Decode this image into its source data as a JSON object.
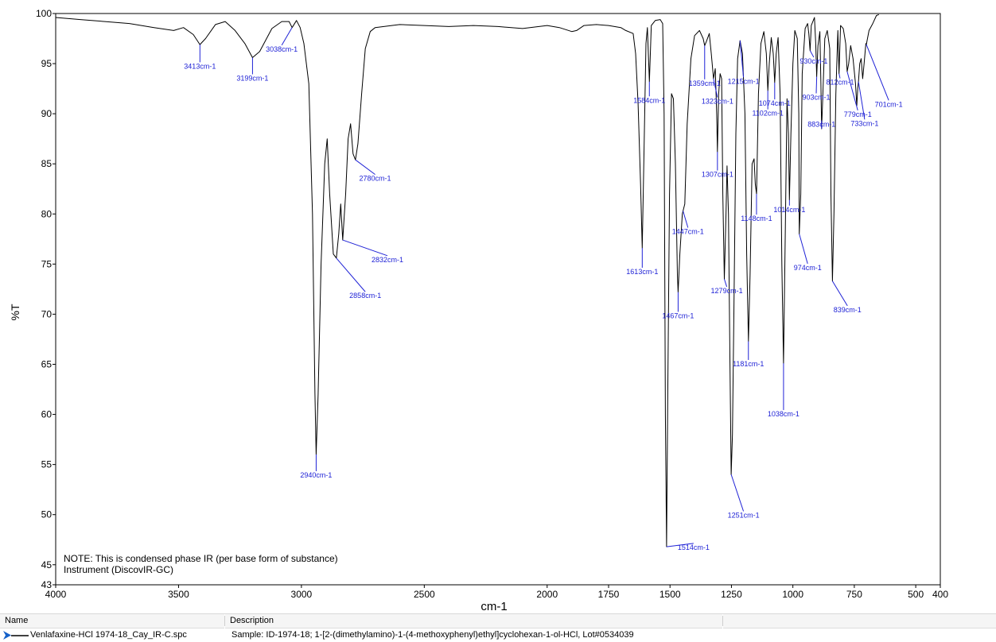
{
  "chart_data": {
    "type": "line",
    "title": "",
    "xlabel": "cm-1",
    "ylabel": "%T",
    "xlim": [
      4000,
      400
    ],
    "ylim": [
      43,
      100
    ],
    "x_ticks": [
      4000,
      3500,
      3000,
      2500,
      2000,
      1750,
      1500,
      1250,
      1000,
      750,
      500,
      400
    ],
    "y_ticks": [
      43,
      45,
      50,
      55,
      60,
      65,
      70,
      75,
      80,
      85,
      90,
      95,
      100
    ],
    "x_tick_labels": [
      "4000",
      "3500",
      "3000",
      "2500",
      "2000",
      "1750",
      "1500",
      "1250",
      "1000",
      "750",
      "500",
      "400"
    ],
    "y_tick_labels": [
      "43",
      "45",
      "50",
      "55",
      "60",
      "65",
      "70",
      "75",
      "80",
      "85",
      "90",
      "95",
      "100"
    ],
    "series": [
      {
        "name": "Venlafaxine-HCl 1974-18_Cay_IR-C.spc",
        "color": "#000000",
        "points": [
          [
            4000,
            99.6
          ],
          [
            3900,
            99.4
          ],
          [
            3800,
            99.2
          ],
          [
            3700,
            99.0
          ],
          [
            3600,
            98.6
          ],
          [
            3520,
            98.3
          ],
          [
            3480,
            98.6
          ],
          [
            3440,
            97.9
          ],
          [
            3413,
            96.9
          ],
          [
            3390,
            97.5
          ],
          [
            3350,
            98.9
          ],
          [
            3310,
            99.2
          ],
          [
            3270,
            98.3
          ],
          [
            3230,
            97.0
          ],
          [
            3199,
            95.6
          ],
          [
            3170,
            96.2
          ],
          [
            3120,
            98.5
          ],
          [
            3080,
            99.2
          ],
          [
            3050,
            99.2
          ],
          [
            3038,
            98.6
          ],
          [
            3020,
            99.3
          ],
          [
            3005,
            98.6
          ],
          [
            2990,
            97.0
          ],
          [
            2970,
            93.0
          ],
          [
            2955,
            80.0
          ],
          [
            2945,
            62.0
          ],
          [
            2940,
            56.0
          ],
          [
            2932,
            62.0
          ],
          [
            2920,
            75.0
          ],
          [
            2905,
            85.0
          ],
          [
            2895,
            87.5
          ],
          [
            2885,
            82.0
          ],
          [
            2870,
            76.0
          ],
          [
            2858,
            75.6
          ],
          [
            2848,
            78.0
          ],
          [
            2840,
            81.0
          ],
          [
            2832,
            77.4
          ],
          [
            2820,
            82.0
          ],
          [
            2810,
            87.5
          ],
          [
            2800,
            89.0
          ],
          [
            2790,
            86.0
          ],
          [
            2780,
            85.4
          ],
          [
            2770,
            87.0
          ],
          [
            2755,
            92.0
          ],
          [
            2740,
            96.5
          ],
          [
            2720,
            98.2
          ],
          [
            2700,
            98.6
          ],
          [
            2600,
            98.9
          ],
          [
            2500,
            98.8
          ],
          [
            2400,
            98.7
          ],
          [
            2300,
            98.8
          ],
          [
            2200,
            98.7
          ],
          [
            2100,
            98.5
          ],
          [
            2000,
            98.8
          ],
          [
            1950,
            98.6
          ],
          [
            1900,
            98.2
          ],
          [
            1880,
            98.3
          ],
          [
            1850,
            98.8
          ],
          [
            1800,
            98.9
          ],
          [
            1750,
            98.8
          ],
          [
            1700,
            98.6
          ],
          [
            1680,
            98.3
          ],
          [
            1650,
            98.0
          ],
          [
            1640,
            96.0
          ],
          [
            1630,
            91.0
          ],
          [
            1620,
            83.0
          ],
          [
            1613,
            76.6
          ],
          [
            1606,
            86.0
          ],
          [
            1598,
            97.0
          ],
          [
            1592,
            98.6
          ],
          [
            1584,
            93.2
          ],
          [
            1576,
            98.8
          ],
          [
            1560,
            99.3
          ],
          [
            1540,
            99.4
          ],
          [
            1530,
            99.0
          ],
          [
            1524,
            90.0
          ],
          [
            1519,
            60.0
          ],
          [
            1514,
            46.8
          ],
          [
            1509,
            62.0
          ],
          [
            1502,
            82.0
          ],
          [
            1494,
            92.0
          ],
          [
            1486,
            91.5
          ],
          [
            1478,
            85.0
          ],
          [
            1470,
            74.0
          ],
          [
            1467,
            72.2
          ],
          [
            1460,
            76.0
          ],
          [
            1450,
            80.0
          ],
          [
            1447,
            80.3
          ],
          [
            1440,
            81.0
          ],
          [
            1430,
            89.0
          ],
          [
            1415,
            95.5
          ],
          [
            1400,
            97.8
          ],
          [
            1380,
            98.3
          ],
          [
            1365,
            97.5
          ],
          [
            1359,
            96.8
          ],
          [
            1352,
            97.2
          ],
          [
            1340,
            98.0
          ],
          [
            1332,
            96.0
          ],
          [
            1323,
            93.5
          ],
          [
            1316,
            94.5
          ],
          [
            1310,
            90.0
          ],
          [
            1307,
            86.2
          ],
          [
            1302,
            92.0
          ],
          [
            1296,
            94.0
          ],
          [
            1290,
            93.5
          ],
          [
            1285,
            82.0
          ],
          [
            1279,
            73.5
          ],
          [
            1272,
            80.0
          ],
          [
            1268,
            84.8
          ],
          [
            1262,
            80.0
          ],
          [
            1256,
            65.0
          ],
          [
            1251,
            54.0
          ],
          [
            1246,
            58.0
          ],
          [
            1240,
            70.0
          ],
          [
            1232,
            88.0
          ],
          [
            1225,
            95.5
          ],
          [
            1215,
            97.3
          ],
          [
            1205,
            96.0
          ],
          [
            1195,
            90.0
          ],
          [
            1188,
            76.0
          ],
          [
            1181,
            67.3
          ],
          [
            1174,
            74.0
          ],
          [
            1166,
            85.0
          ],
          [
            1158,
            85.5
          ],
          [
            1153,
            83.0
          ],
          [
            1148,
            82.0
          ],
          [
            1140,
            92.0
          ],
          [
            1130,
            97.0
          ],
          [
            1118,
            98.2
          ],
          [
            1108,
            96.0
          ],
          [
            1102,
            92.3
          ],
          [
            1096,
            95.0
          ],
          [
            1088,
            97.6
          ],
          [
            1080,
            96.0
          ],
          [
            1074,
            93.1
          ],
          [
            1068,
            96.0
          ],
          [
            1060,
            97.6
          ],
          [
            1052,
            92.0
          ],
          [
            1045,
            75.0
          ],
          [
            1038,
            65.1
          ],
          [
            1031,
            78.0
          ],
          [
            1024,
            91.5
          ],
          [
            1018,
            88.0
          ],
          [
            1014,
            81.4
          ],
          [
            1008,
            88.0
          ],
          [
            1000,
            95.0
          ],
          [
            992,
            98.3
          ],
          [
            982,
            97.5
          ],
          [
            976,
            90.0
          ],
          [
            974,
            78.0
          ],
          [
            968,
            82.0
          ],
          [
            962,
            94.0
          ],
          [
            950,
            98.5
          ],
          [
            940,
            99.0
          ],
          [
            935,
            98.0
          ],
          [
            930,
            96.3
          ],
          [
            925,
            98.8
          ],
          [
            912,
            99.6
          ],
          [
            907,
            97.0
          ],
          [
            903,
            93.7
          ],
          [
            898,
            96.8
          ],
          [
            890,
            98.2
          ],
          [
            886,
            93.0
          ],
          [
            883,
            88.5
          ],
          [
            878,
            92.0
          ],
          [
            870,
            97.5
          ],
          [
            860,
            98.3
          ],
          [
            850,
            96.5
          ],
          [
            845,
            82.0
          ],
          [
            839,
            73.3
          ],
          [
            833,
            80.0
          ],
          [
            825,
            92.0
          ],
          [
            817,
            98.3
          ],
          [
            812,
            94.0
          ],
          [
            806,
            98.8
          ],
          [
            795,
            98.5
          ],
          [
            785,
            97.0
          ],
          [
            779,
            94.2
          ],
          [
            773,
            95.0
          ],
          [
            765,
            96.8
          ],
          [
            755,
            95.5
          ],
          [
            745,
            93.0
          ],
          [
            740,
            90.8
          ],
          [
            736,
            92.5
          ],
          [
            733,
            93.2
          ],
          [
            728,
            95.0
          ],
          [
            722,
            95.5
          ],
          [
            716,
            93.5
          ],
          [
            710,
            95.0
          ],
          [
            703,
            97.0
          ],
          [
            701,
            96.9
          ],
          [
            690,
            98.3
          ],
          [
            675,
            99.0
          ],
          [
            660,
            99.8
          ],
          [
            650,
            99.9
          ]
        ]
      }
    ],
    "peak_labels": [
      {
        "x": 3413,
        "y": 96.9,
        "label": "3413cm-1",
        "lx": 3413,
        "ly": 94.5
      },
      {
        "x": 3199,
        "y": 95.6,
        "label": "3199cm-1",
        "lx": 3199,
        "ly": 93.3
      },
      {
        "x": 3038,
        "y": 98.6,
        "label": "3038cm-1",
        "lx": 3080,
        "ly": 96.2
      },
      {
        "x": 2940,
        "y": 56.0,
        "label": "2940cm-1",
        "lx": 2940,
        "ly": 53.7
      },
      {
        "x": 2858,
        "y": 75.6,
        "label": "2858cm-1",
        "lx": 2740,
        "ly": 71.6
      },
      {
        "x": 2832,
        "y": 77.4,
        "label": "2832cm-1",
        "lx": 2650,
        "ly": 75.2
      },
      {
        "x": 2780,
        "y": 85.4,
        "label": "2780cm-1",
        "lx": 2700,
        "ly": 83.3
      },
      {
        "x": 1613,
        "y": 76.6,
        "label": "1613cm-1",
        "lx": 1613,
        "ly": 74.0
      },
      {
        "x": 1584,
        "y": 93.2,
        "label": "1584cm-1",
        "lx": 1584,
        "ly": 91.1
      },
      {
        "x": 1514,
        "y": 46.8,
        "label": "1514cm-1",
        "lx": 1404,
        "ly": 46.5
      },
      {
        "x": 1467,
        "y": 72.2,
        "label": "1467cm-1",
        "lx": 1467,
        "ly": 69.6
      },
      {
        "x": 1447,
        "y": 80.3,
        "label": "1447cm-1",
        "lx": 1427,
        "ly": 78.0
      },
      {
        "x": 1359,
        "y": 96.8,
        "label": "1359cm-1",
        "lx": 1359,
        "ly": 92.8
      },
      {
        "x": 1323,
        "y": 93.5,
        "label": "1323cm-1",
        "lx": 1307,
        "ly": 91.0
      },
      {
        "x": 1307,
        "y": 86.2,
        "label": "1307cm-1",
        "lx": 1307,
        "ly": 83.7
      },
      {
        "x": 1279,
        "y": 73.5,
        "label": "1279cm-1",
        "lx": 1269,
        "ly": 72.1
      },
      {
        "x": 1251,
        "y": 54.0,
        "label": "1251cm-1",
        "lx": 1201,
        "ly": 49.7
      },
      {
        "x": 1215,
        "y": 97.3,
        "label": "1215cm-1",
        "lx": 1201,
        "ly": 93.0
      },
      {
        "x": 1181,
        "y": 67.3,
        "label": "1181cm-1",
        "lx": 1181,
        "ly": 64.8
      },
      {
        "x": 1148,
        "y": 82.0,
        "label": "1148cm-1",
        "lx": 1148,
        "ly": 79.3
      },
      {
        "x": 1102,
        "y": 92.3,
        "label": "1102cm-1",
        "lx": 1102,
        "ly": 89.8
      },
      {
        "x": 1074,
        "y": 93.1,
        "label": "1074cm-1",
        "lx": 1074,
        "ly": 90.8
      },
      {
        "x": 1038,
        "y": 65.1,
        "label": "1038cm-1",
        "lx": 1038,
        "ly": 59.8
      },
      {
        "x": 1014,
        "y": 81.4,
        "label": "1014cm-1",
        "lx": 1014,
        "ly": 80.2
      },
      {
        "x": 974,
        "y": 78.0,
        "label": "974cm-1",
        "lx": 940,
        "ly": 74.4
      },
      {
        "x": 930,
        "y": 96.3,
        "label": "930cm-1",
        "lx": 915,
        "ly": 95.0
      },
      {
        "x": 903,
        "y": 93.7,
        "label": "903cm-1",
        "lx": 905,
        "ly": 91.4
      },
      {
        "x": 883,
        "y": 88.5,
        "label": "883cm-1",
        "lx": 883,
        "ly": 88.7
      },
      {
        "x": 839,
        "y": 73.3,
        "label": "839cm-1",
        "lx": 778,
        "ly": 70.2
      },
      {
        "x": 812,
        "y": 94.0,
        "label": "812cm-1",
        "lx": 808,
        "ly": 92.9
      },
      {
        "x": 779,
        "y": 94.2,
        "label": "779cm-1",
        "lx": 736,
        "ly": 89.7
      },
      {
        "x": 733,
        "y": 93.2,
        "label": "733cm-1",
        "lx": 708,
        "ly": 88.8
      },
      {
        "x": 701,
        "y": 96.9,
        "label": "701cm-1",
        "lx": 610,
        "ly": 90.7
      }
    ],
    "annotations": [
      "NOTE: This is condensed phase IR (per base form of substance)",
      "Instrument (DiscovIR-GC)"
    ],
    "grid": false,
    "legend": "bottom table"
  },
  "legend_table": {
    "col_name": "Name",
    "col_description": "Description",
    "rows": [
      {
        "name": "Venlafaxine-HCl 1974-18_Cay_IR-C.spc",
        "description": "Sample: ID-1974-18; 1-[2-(dimethylamino)-1-(4-methoxyphenyl)ethyl]cyclohexan-1-ol-HCl, Lot#0534039"
      }
    ]
  },
  "colors": {
    "trace": "#000000",
    "peak_label": "#1f22d6",
    "axis": "#000000"
  }
}
